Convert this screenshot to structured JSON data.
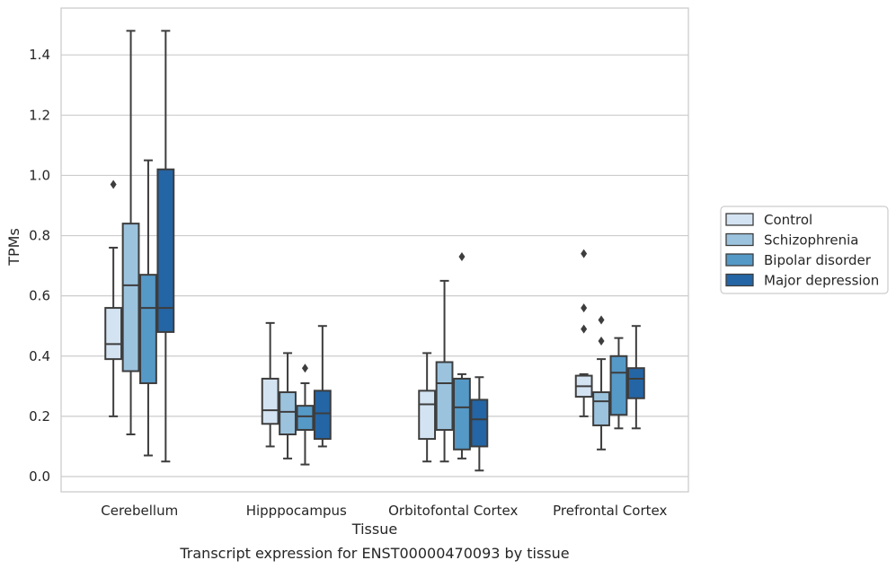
{
  "chart_data": {
    "type": "box",
    "caption": "Transcript expression for ENST00000470093 by tissue",
    "xlabel": "Tissue",
    "ylabel": "TPMs",
    "ylim": [
      -0.05,
      1.56
    ],
    "yticks": [
      0.0,
      0.2,
      0.4,
      0.6,
      0.8,
      1.0,
      1.2,
      1.4
    ],
    "grid": "horizontal",
    "legend_position": "right",
    "categories": [
      "Cerebellum",
      "Hipppocampus",
      "Orbitofontal Cortex",
      "Prefrontal Cortex"
    ],
    "series": [
      {
        "name": "Control",
        "color": "#d4e3f2",
        "boxes": [
          {
            "whisker_low": 0.2,
            "q1": 0.39,
            "median": 0.44,
            "q3": 0.56,
            "whisker_high": 0.76,
            "outliers": [
              0.97
            ]
          },
          {
            "whisker_low": 0.1,
            "q1": 0.175,
            "median": 0.22,
            "q3": 0.325,
            "whisker_high": 0.51,
            "outliers": []
          },
          {
            "whisker_low": 0.05,
            "q1": 0.125,
            "median": 0.24,
            "q3": 0.285,
            "whisker_high": 0.41,
            "outliers": []
          },
          {
            "whisker_low": 0.2,
            "q1": 0.265,
            "median": 0.3,
            "q3": 0.335,
            "whisker_high": 0.34,
            "outliers": [
              0.49,
              0.56,
              0.74
            ]
          }
        ]
      },
      {
        "name": "Schizophrenia",
        "color": "#9cc3de",
        "boxes": [
          {
            "whisker_low": 0.14,
            "q1": 0.35,
            "median": 0.635,
            "q3": 0.84,
            "whisker_high": 1.48,
            "outliers": []
          },
          {
            "whisker_low": 0.06,
            "q1": 0.14,
            "median": 0.215,
            "q3": 0.28,
            "whisker_high": 0.41,
            "outliers": []
          },
          {
            "whisker_low": 0.05,
            "q1": 0.155,
            "median": 0.31,
            "q3": 0.38,
            "whisker_high": 0.65,
            "outliers": []
          },
          {
            "whisker_low": 0.09,
            "q1": 0.17,
            "median": 0.25,
            "q3": 0.28,
            "whisker_high": 0.39,
            "outliers": [
              0.45,
              0.52
            ]
          }
        ]
      },
      {
        "name": "Bipolar disorder",
        "color": "#5599c7",
        "boxes": [
          {
            "whisker_low": 0.07,
            "q1": 0.31,
            "median": 0.56,
            "q3": 0.67,
            "whisker_high": 1.05,
            "outliers": []
          },
          {
            "whisker_low": 0.04,
            "q1": 0.155,
            "median": 0.2,
            "q3": 0.235,
            "whisker_high": 0.31,
            "outliers": [
              0.36
            ]
          },
          {
            "whisker_low": 0.06,
            "q1": 0.09,
            "median": 0.23,
            "q3": 0.325,
            "whisker_high": 0.34,
            "outliers": [
              0.73
            ]
          },
          {
            "whisker_low": 0.16,
            "q1": 0.205,
            "median": 0.345,
            "q3": 0.4,
            "whisker_high": 0.46,
            "outliers": []
          }
        ]
      },
      {
        "name": "Major depression",
        "color": "#2465a5",
        "boxes": [
          {
            "whisker_low": 0.05,
            "q1": 0.48,
            "median": 0.56,
            "q3": 1.02,
            "whisker_high": 1.48,
            "outliers": []
          },
          {
            "whisker_low": 0.1,
            "q1": 0.125,
            "median": 0.21,
            "q3": 0.285,
            "whisker_high": 0.5,
            "outliers": []
          },
          {
            "whisker_low": 0.02,
            "q1": 0.1,
            "median": 0.19,
            "q3": 0.255,
            "whisker_high": 0.33,
            "outliers": []
          },
          {
            "whisker_low": 0.16,
            "q1": 0.26,
            "median": 0.325,
            "q3": 0.36,
            "whisker_high": 0.5,
            "outliers": []
          }
        ]
      }
    ]
  }
}
